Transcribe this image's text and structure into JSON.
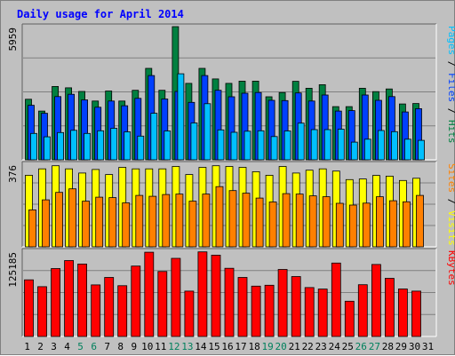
{
  "chart_data": [
    {
      "type": "bar",
      "title": "Daily usage for April 2014",
      "ytick_top": "5959",
      "ylim": [
        0,
        5959
      ],
      "side_label": [
        {
          "text": "Pages",
          "color": "#00c0ff"
        },
        {
          "text": " / ",
          "color": "#000000"
        },
        {
          "text": "Files",
          "color": "#0040ff"
        },
        {
          "text": " / ",
          "color": "#000000"
        },
        {
          "text": "Hits",
          "color": "#008040"
        }
      ],
      "series": [
        {
          "name": "Hits",
          "color": "#008040",
          "values": [
            2710,
            2180,
            3280,
            3220,
            3060,
            2630,
            3080,
            2630,
            3110,
            4090,
            3110,
            5959,
            3420,
            4090,
            3620,
            3420,
            3520,
            3520,
            2820,
            3010,
            3510,
            3200,
            3360,
            2380,
            2380,
            3200,
            3050,
            3170,
            2500,
            2520
          ]
        },
        {
          "name": "Files",
          "color": "#0040ff",
          "values": [
            2440,
            2080,
            2830,
            2930,
            2680,
            2350,
            2630,
            2420,
            2750,
            3770,
            2720,
            3060,
            2570,
            3770,
            3110,
            2820,
            2980,
            3010,
            2660,
            2650,
            2990,
            2630,
            2900,
            2180,
            2200,
            2900,
            2660,
            2830,
            2140,
            2290
          ]
        },
        {
          "name": "Pages",
          "color": "#00c0ff",
          "values": [
            1180,
            1030,
            1220,
            1320,
            1180,
            1300,
            1410,
            1250,
            1060,
            2080,
            1290,
            3850,
            1650,
            2510,
            1340,
            1230,
            1280,
            1300,
            1040,
            1290,
            1640,
            1350,
            1350,
            1370,
            790,
            920,
            1310,
            1260,
            920,
            870
          ]
        }
      ]
    },
    {
      "type": "bar",
      "ytick_top": "376",
      "ylim": [
        0,
        376
      ],
      "side_label": [
        {
          "text": "Sites",
          "color": "#ff8000"
        },
        {
          "text": " / ",
          "color": "#000000"
        },
        {
          "text": "Visits",
          "color": "#ffff00"
        }
      ],
      "series": [
        {
          "name": "Visits",
          "color": "#ffff00",
          "values": [
            326,
            355,
            369,
            355,
            336,
            352,
            329,
            362,
            355,
            355,
            355,
            366,
            329,
            362,
            369,
            366,
            362,
            342,
            326,
            366,
            336,
            349,
            355,
            345,
            306,
            309,
            325,
            322,
            302,
            312
          ]
        },
        {
          "name": "Sites",
          "color": "#ff8000",
          "values": [
            168,
            214,
            248,
            264,
            208,
            226,
            224,
            200,
            234,
            230,
            238,
            240,
            208,
            240,
            274,
            256,
            244,
            222,
            204,
            242,
            240,
            232,
            228,
            198,
            190,
            199,
            228,
            210,
            205,
            234
          ]
        }
      ]
    },
    {
      "type": "bar",
      "ytick_top": "125185",
      "ylim": [
        0,
        125185
      ],
      "side_label": [
        {
          "text": "KBytes",
          "color": "#ff0000"
        }
      ],
      "series": [
        {
          "name": "KBytes",
          "color": "#ff0000",
          "values": [
            83200,
            73200,
            99800,
            111500,
            106400,
            75800,
            86700,
            74600,
            103400,
            123700,
            95400,
            114800,
            66600,
            124300,
            119400,
            100100,
            86700,
            74000,
            75200,
            98500,
            88000,
            71800,
            69600,
            107900,
            51800,
            76000,
            105800,
            85400,
            69800,
            66700
          ]
        }
      ]
    }
  ],
  "x_days": [
    "1",
    "2",
    "3",
    "4",
    "5",
    "6",
    "7",
    "8",
    "9",
    "10",
    "11",
    "12",
    "13",
    "14",
    "15",
    "16",
    "17",
    "18",
    "19",
    "20",
    "21",
    "22",
    "23",
    "24",
    "25",
    "26",
    "27",
    "28",
    "29",
    "30",
    "31"
  ],
  "weekend_days": [
    "5",
    "6",
    "12",
    "13",
    "19",
    "20",
    "26",
    "27"
  ],
  "colors": {
    "background": "#c0c0c0",
    "panel": "#c0c0c0",
    "grid": "#808080",
    "title": "#0000ff",
    "day_label": "#000000",
    "weekend_label": "#00805c"
  }
}
